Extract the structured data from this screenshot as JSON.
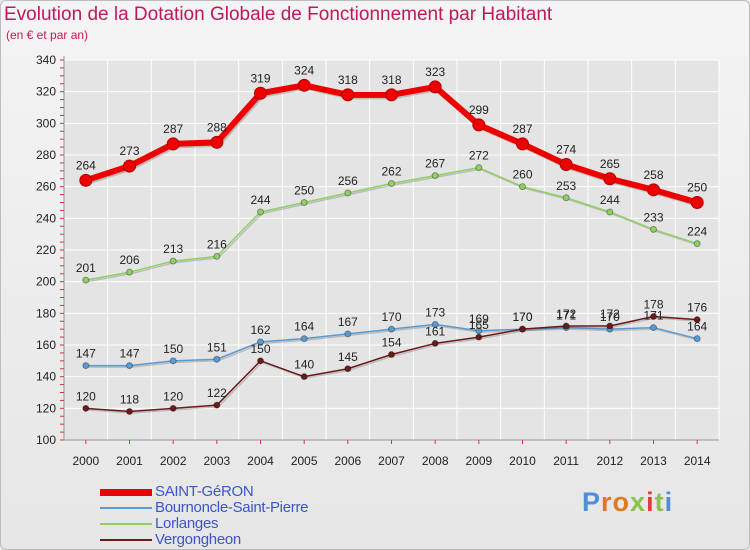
{
  "title": "Evolution de la Dotation Globale de Fonctionnement par Habitant",
  "subtitle": "(en € et par an)",
  "logo": "Proxiti",
  "colors": {
    "title": "#c2185b",
    "grid": "#ffffff",
    "axis_text": "#222222",
    "legend_text": "#3b56c7",
    "logo_letters": [
      "#4f8fd6",
      "#e07a1f",
      "#e07a1f",
      "#8bc34a",
      "#e03c3c",
      "#8bc34a",
      "#4f8fd6"
    ]
  },
  "chart_data": {
    "type": "line",
    "title": "Evolution de la Dotation Globale de Fonctionnement par Habitant",
    "ylabel": "(en € et par an)",
    "xlabel": "",
    "ylim": [
      100,
      340
    ],
    "yticks": [
      100,
      120,
      140,
      160,
      180,
      200,
      220,
      240,
      260,
      280,
      300,
      320,
      340
    ],
    "grid": true,
    "legend_position": "bottom-left",
    "x": [
      "2000",
      "2001",
      "2002",
      "2003",
      "2004",
      "2005",
      "2006",
      "2007",
      "2008",
      "2009",
      "2010",
      "2011",
      "2012",
      "2013",
      "2014"
    ],
    "series": [
      {
        "name": "SAINT-GéRON",
        "color": "#ee0000",
        "emphasis": true,
        "values": [
          264,
          273,
          287,
          288,
          319,
          324,
          318,
          318,
          323,
          299,
          287,
          274,
          265,
          258,
          250
        ]
      },
      {
        "name": "Bournoncle-Saint-Pierre",
        "color": "#5b9bd5",
        "emphasis": false,
        "values": [
          147,
          147,
          150,
          151,
          162,
          164,
          167,
          170,
          173,
          169,
          170,
          171,
          170,
          171,
          164
        ]
      },
      {
        "name": "Lorlanges",
        "color": "#8fd063",
        "emphasis": false,
        "values": [
          201,
          206,
          213,
          216,
          244,
          250,
          256,
          262,
          267,
          272,
          260,
          253,
          244,
          233,
          224
        ]
      },
      {
        "name": "Vergongheon",
        "color": "#6b1a1a",
        "emphasis": false,
        "values": [
          120,
          118,
          120,
          122,
          150,
          140,
          145,
          154,
          161,
          165,
          170,
          172,
          172,
          178,
          176
        ],
        "labels": [
          "120",
          "118",
          "120",
          "122",
          "150",
          "140",
          "145",
          "154",
          "161",
          "165",
          "170",
          "172",
          "172",
          "178",
          "176"
        ]
      }
    ]
  }
}
